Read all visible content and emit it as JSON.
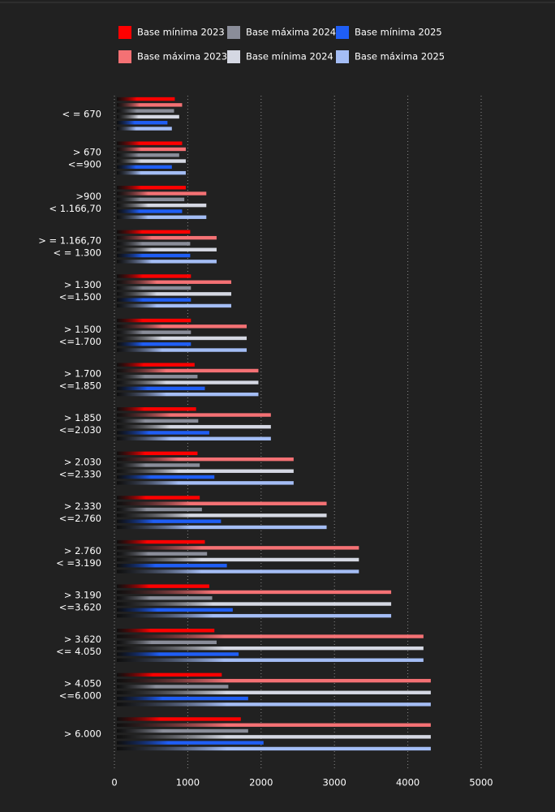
{
  "chart_data": {
    "type": "hbar",
    "categories": [
      "< = 670",
      "> 670\n<=900",
      ">900\n< 1.166,70",
      "> = 1.166,70\n< = 1.300",
      "> 1.300\n<=1.500",
      "> 1.500\n<=1.700",
      "> 1.700\n<=1.850",
      "> 1.850\n<=2.030",
      "> 2.030\n<=2.330",
      "> 2.330\n<=2.760",
      "> 2.760\n< =3.190",
      "> 3.190\n<=3.620",
      "> 3.620\n<= 4.050",
      "> 4.050\n<=6.000",
      "> 6.000"
    ],
    "series": [
      {
        "name": "Base mínima 2023",
        "color": "#ff0000",
        "values": [
          790,
          890,
          940,
          1000,
          1010,
          1010,
          1060,
          1080,
          1100,
          1130,
          1200,
          1260,
          1330,
          1430,
          1690
        ]
      },
      {
        "name": "Base máxima 2023",
        "color": "#f47174",
        "values": [
          890,
          940,
          1220,
          1360,
          1560,
          1770,
          1930,
          2100,
          2410,
          2860,
          3300,
          3740,
          4180,
          4280,
          4280
        ]
      },
      {
        "name": "Base máxima 2024",
        "color": "#8a8d99",
        "values": [
          780,
          850,
          920,
          1000,
          1010,
          1010,
          1100,
          1110,
          1130,
          1160,
          1230,
          1300,
          1360,
          1520,
          1790
        ]
      },
      {
        "name": "Base mínima 2024",
        "color": "#d5d8e3",
        "values": [
          850,
          940,
          1220,
          1360,
          1560,
          1770,
          1930,
          2100,
          2410,
          2860,
          3300,
          3740,
          4180,
          4280,
          4280
        ]
      },
      {
        "name": "Base mínima 2025",
        "color": "#1f5ef5",
        "values": [
          690,
          750,
          890,
          1000,
          1010,
          1010,
          1200,
          1260,
          1330,
          1420,
          1500,
          1580,
          1660,
          1790,
          2000
        ]
      },
      {
        "name": "Base máxima 2025",
        "color": "#a4bdf5",
        "values": [
          750,
          940,
          1220,
          1360,
          1560,
          1770,
          1930,
          2100,
          2410,
          2860,
          3300,
          3740,
          4180,
          4280,
          4280
        ]
      }
    ],
    "xlim": [
      0,
      5000
    ],
    "xticks": [
      0,
      1000,
      2000,
      3000,
      4000,
      5000
    ],
    "grid": true
  }
}
